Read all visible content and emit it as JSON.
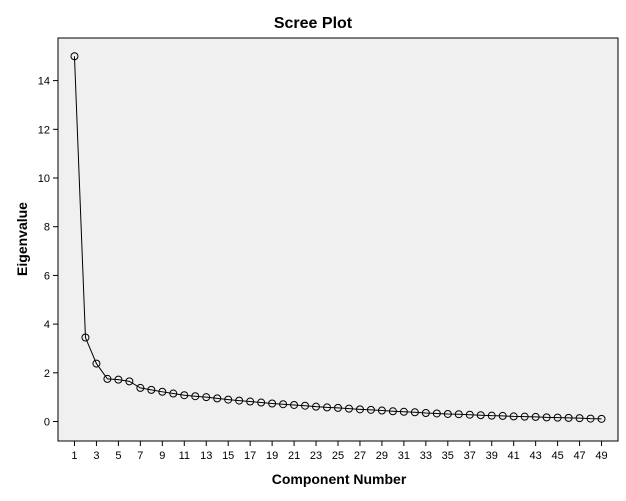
{
  "chart_data": {
    "type": "line",
    "title": "Scree Plot",
    "xlabel": "Component Number",
    "ylabel": "Eigenvalue",
    "x": [
      1,
      2,
      3,
      4,
      5,
      6,
      7,
      8,
      9,
      10,
      11,
      12,
      13,
      14,
      15,
      16,
      17,
      18,
      19,
      20,
      21,
      22,
      23,
      24,
      25,
      26,
      27,
      28,
      29,
      30,
      31,
      32,
      33,
      34,
      35,
      36,
      37,
      38,
      39,
      40,
      41,
      42,
      43,
      44,
      45,
      46,
      47,
      48,
      49
    ],
    "series": [
      {
        "values": [
          15.0,
          3.45,
          2.38,
          1.75,
          1.72,
          1.65,
          1.38,
          1.3,
          1.22,
          1.15,
          1.08,
          1.04,
          1.0,
          0.95,
          0.9,
          0.86,
          0.82,
          0.78,
          0.74,
          0.71,
          0.68,
          0.65,
          0.61,
          0.58,
          0.56,
          0.53,
          0.5,
          0.48,
          0.45,
          0.42,
          0.4,
          0.38,
          0.35,
          0.33,
          0.31,
          0.3,
          0.28,
          0.26,
          0.24,
          0.23,
          0.21,
          0.2,
          0.19,
          0.17,
          0.16,
          0.15,
          0.14,
          0.12,
          0.11
        ]
      }
    ],
    "xticks": [
      1,
      3,
      5,
      7,
      9,
      11,
      13,
      15,
      17,
      19,
      21,
      23,
      25,
      27,
      29,
      31,
      33,
      35,
      37,
      39,
      41,
      43,
      45,
      47,
      49
    ],
    "yticks": [
      0,
      2,
      4,
      6,
      8,
      10,
      12,
      14
    ],
    "xlim": [
      -0.5,
      50.5
    ],
    "ylim": [
      -0.8,
      15.75
    ],
    "grid": false,
    "legend": "none",
    "colors": {
      "plot_background": "#f0f0f0",
      "line": "#000000",
      "marker": "#000000"
    }
  }
}
